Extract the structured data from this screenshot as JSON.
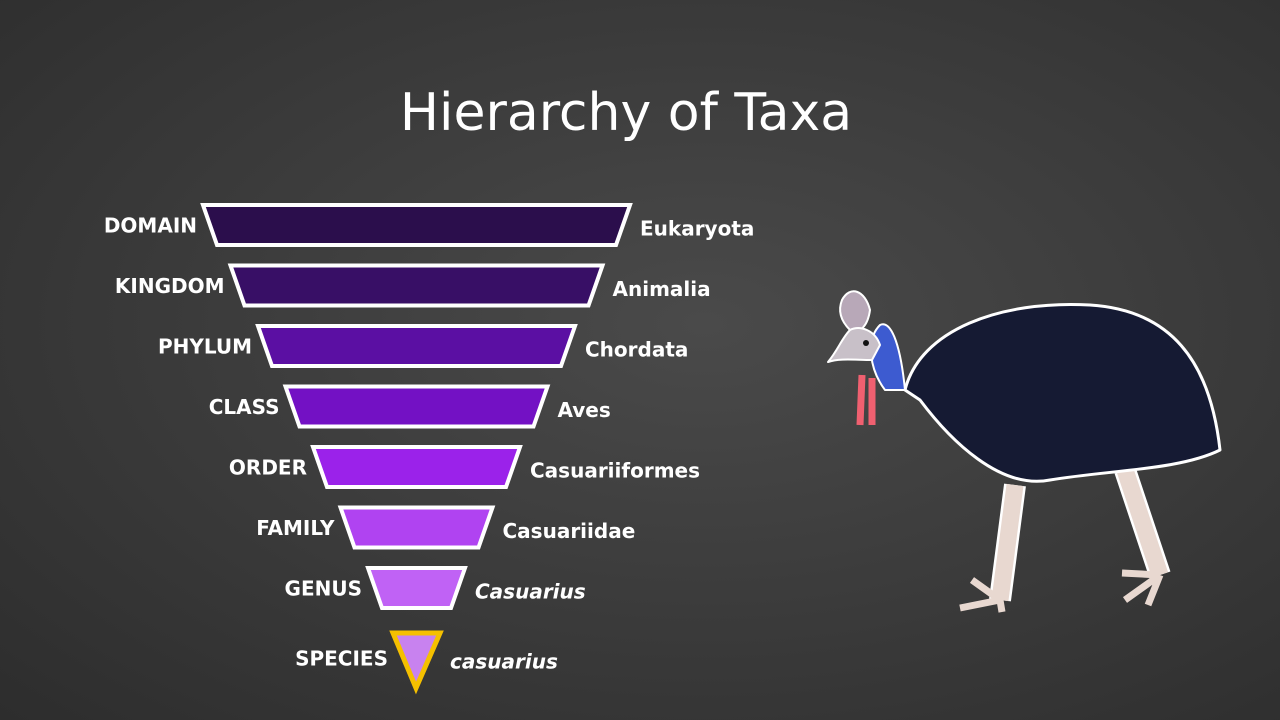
{
  "title": "Hierarchy of Taxa",
  "levels": [
    {
      "rank": "DOMAIN",
      "taxon": "Eukaryota",
      "color": "#2b0e4c",
      "italic": false
    },
    {
      "rank": "KINGDOM",
      "taxon": "Animalia",
      "color": "#380f66",
      "italic": false
    },
    {
      "rank": "PHYLUM",
      "taxon": "Chordata",
      "color": "#5b0fa3",
      "italic": false
    },
    {
      "rank": "CLASS",
      "taxon": "Aves",
      "color": "#7311c4",
      "italic": false
    },
    {
      "rank": "ORDER",
      "taxon": "Casuariiformes",
      "color": "#9b22ea",
      "italic": false
    },
    {
      "rank": "FAMILY",
      "taxon": "Casuariidae",
      "color": "#b043f1",
      "italic": false
    },
    {
      "rank": "GENUS",
      "taxon": "Casuarius",
      "color": "#c062f5",
      "italic": true
    },
    {
      "rank": "SPECIES",
      "taxon": "casuarius",
      "color": "#c882ef",
      "italic": true
    }
  ]
}
